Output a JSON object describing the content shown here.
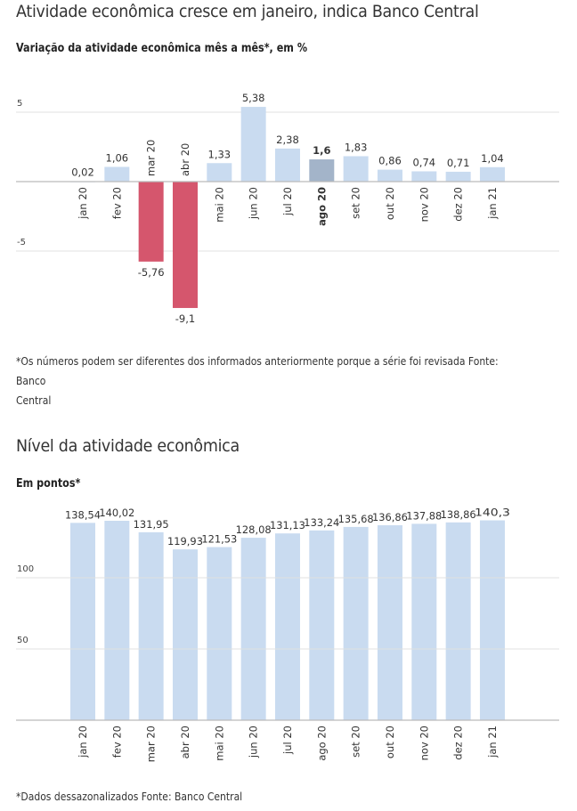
{
  "page": {
    "title": "Atividade econômica cresce em janeiro, indica Banco Central",
    "chart1_subtitle": "Variação da atividade econômica mês a mês*, em %",
    "chart1_note_line1": "*Os números podem ser diferentes dos informados anteriormente porque a série foi revisada Fonte: Banco",
    "chart1_note_line2": "Central",
    "chart2_title": "Nível da atividade econômica",
    "chart2_subtitle": "Em pontos*",
    "chart2_note": "*Dados dessazonalizados Fonte: Banco Central"
  },
  "colors": {
    "positive": "#c9dbf0",
    "negative": "#d5566d",
    "highlight": "#a3b4c9",
    "grid": "#e0e0e0",
    "axis": "#bbbbbb",
    "text": "#333333"
  },
  "chart_data": [
    {
      "type": "bar",
      "title": "Variação da atividade econômica mês a mês*, em %",
      "xlabel": "",
      "ylabel": "",
      "categories": [
        "jan 20",
        "fev 20",
        "mar 20",
        "abr 20",
        "mai 20",
        "jun 20",
        "jul 20",
        "ago 20",
        "set 20",
        "out 20",
        "nov 20",
        "dez 20",
        "jan 21"
      ],
      "values": [
        0.02,
        1.06,
        -5.76,
        -9.1,
        1.33,
        5.38,
        2.38,
        1.6,
        1.83,
        0.86,
        0.74,
        0.71,
        1.04
      ],
      "value_labels": [
        "0,02",
        "1,06",
        "-5,76",
        "-9,1",
        "1,33",
        "5,38",
        "2,38",
        "1,6",
        "1,83",
        "0,86",
        "0,74",
        "0,71",
        "1,04"
      ],
      "highlighted_category": "ago 20",
      "yticks": [
        5,
        0,
        -5
      ],
      "ytick_labels": [
        "5",
        "",
        "-5"
      ],
      "ylim": [
        -10,
        5.8
      ],
      "grid": true,
      "legend": "none"
    },
    {
      "type": "bar",
      "title": "Em pontos*",
      "xlabel": "",
      "ylabel": "",
      "categories": [
        "jan 20",
        "fev 20",
        "mar 20",
        "abr 20",
        "mai 20",
        "jun 20",
        "jul 20",
        "ago 20",
        "set 20",
        "out 20",
        "nov 20",
        "dez 20",
        "jan 21"
      ],
      "values": [
        138.54,
        140.02,
        131.95,
        119.93,
        121.53,
        128.08,
        131.13,
        133.24,
        135.68,
        136.86,
        137.88,
        138.86,
        140.3
      ],
      "value_labels": [
        "138,54",
        "140,02",
        "131,95",
        "119,93",
        "121,53",
        "128,08",
        "131,13",
        "133,24",
        "135,68",
        "136,86",
        "137,88",
        "138,86",
        "140,3"
      ],
      "yticks": [
        100,
        50
      ],
      "ytick_labels": [
        "100",
        "50"
      ],
      "ylim": [
        0,
        150
      ],
      "grid": true,
      "legend": "none"
    }
  ]
}
